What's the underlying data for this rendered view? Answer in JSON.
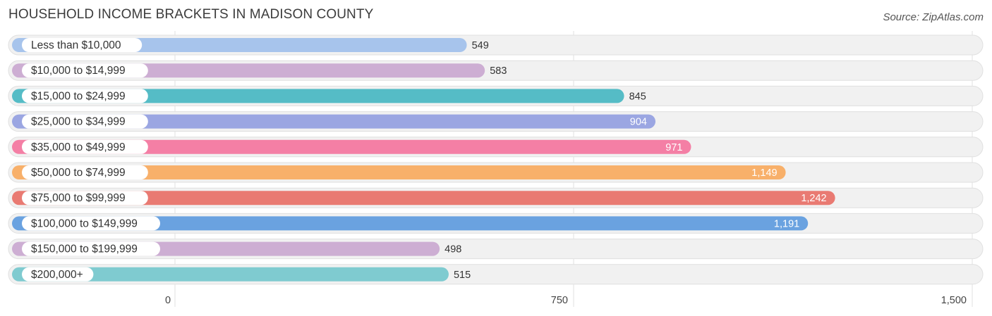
{
  "header": {
    "title": "HOUSEHOLD INCOME BRACKETS IN MADISON COUNTY",
    "source": "Source: ZipAtlas.com"
  },
  "chart_data": {
    "type": "bar",
    "orientation": "horizontal",
    "categories": [
      "Less than $10,000",
      "$10,000 to $14,999",
      "$15,000 to $24,999",
      "$25,000 to $34,999",
      "$35,000 to $49,999",
      "$50,000 to $74,999",
      "$75,000 to $99,999",
      "$100,000 to $149,999",
      "$150,000 to $199,999",
      "$200,000+"
    ],
    "values": [
      549,
      583,
      845,
      904,
      971,
      1149,
      1242,
      1191,
      498,
      515
    ],
    "value_labels": [
      "549",
      "583",
      "845",
      "904",
      "971",
      "1,149",
      "1,242",
      "1,191",
      "498",
      "515"
    ],
    "colors": [
      "#a7c4ec",
      "#cdaed3",
      "#55bcc6",
      "#9ba6e2",
      "#f47fa5",
      "#f8b06a",
      "#e97a72",
      "#6aa2e0",
      "#cdaed3",
      "#7fcbd0"
    ],
    "xlim": [
      0,
      1500
    ],
    "xticks": [
      0,
      750,
      1500
    ],
    "xtick_labels": [
      "0",
      "750",
      "1,500"
    ],
    "grid": true
  }
}
